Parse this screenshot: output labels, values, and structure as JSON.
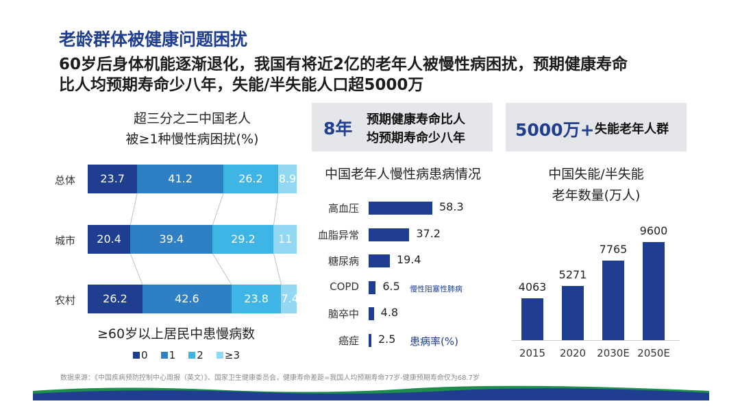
{
  "header": {
    "title": "老龄群体被健康问题困扰",
    "subtitle_line1": "60岁后身体机能逐渐退化，我国有将近2亿的老年人被慢性病困扰，预期健康寿命",
    "subtitle_line2": "比人均预期寿命少八年，失能/半失能人口超5000万"
  },
  "callouts": [
    {
      "big": "8年",
      "text_line1": "预期健康寿命比人",
      "text_line2": "均预期寿命少八年"
    },
    {
      "big": "5000万+",
      "text": "失能老年人群"
    }
  ],
  "source": "数据来源：《中国疾病预防控制中心周报（英文）》、国家卫生健康委员会，健康寿命差距=我国人均预期寿命77岁-健康预期寿命仅为68.7岁",
  "colors": {
    "title_blue": "#1f3e8f",
    "seg_colors": [
      "#1f3e8f",
      "#2f7fc4",
      "#3fb5e5",
      "#93d8f3"
    ],
    "bar_blue": "#1f3e8f",
    "callout_bg": "#e5e6ea",
    "bottom_wave": [
      "#1f3e8f",
      "#1f8e4c"
    ]
  },
  "chart_data": [
    {
      "type": "bar",
      "stacked": true,
      "orientation": "horizontal",
      "title_line1": "超三分之二中国老人",
      "title_line2": "被≥1种慢性病困扰(%)",
      "categories": [
        "总体",
        "城市",
        "农村"
      ],
      "series": [
        {
          "name": "0",
          "values": [
            23.7,
            20.4,
            26.2
          ]
        },
        {
          "name": "1",
          "values": [
            41.2,
            39.4,
            42.6
          ]
        },
        {
          "name": "2",
          "values": [
            26.2,
            29.2,
            23.8
          ]
        },
        {
          "name": "≥3",
          "values": [
            8.9,
            11,
            7.4
          ]
        }
      ],
      "value_labels": [
        [
          "23.7",
          "41.2",
          "26.2",
          "8.9"
        ],
        [
          "20.4",
          "39.4",
          "29.2",
          "11"
        ],
        [
          "26.2",
          "42.6",
          "23.8",
          "7.4"
        ]
      ],
      "xlabel": "≥60岁以上居民中患慢病数",
      "legend_position": "bottom"
    },
    {
      "type": "bar",
      "orientation": "horizontal",
      "title": "中国老年人慢性病患病情况",
      "categories": [
        "高血压",
        "血脂异常",
        "糖尿病",
        "COPD",
        "脑卒中",
        "癌症"
      ],
      "values": [
        58.3,
        37.2,
        19.4,
        6.5,
        4.8,
        2.5
      ],
      "value_labels": [
        "58.3",
        "37.2",
        "19.4",
        "6.5",
        "4.8",
        "2.5"
      ],
      "annotations": {
        "copd_note": "慢性阻塞性肺病",
        "unit_note": "患病率(%)"
      }
    },
    {
      "type": "bar",
      "orientation": "vertical",
      "title_line1": "中国失能/半失能",
      "title_line2": "老年数量(万人)",
      "categories": [
        "2015",
        "2020",
        "2030E",
        "2050E"
      ],
      "values": [
        4063,
        5271,
        7765,
        9600
      ],
      "value_labels": [
        "4063",
        "5271",
        "7765",
        "9600"
      ],
      "ylim": [
        0,
        9600
      ]
    }
  ]
}
